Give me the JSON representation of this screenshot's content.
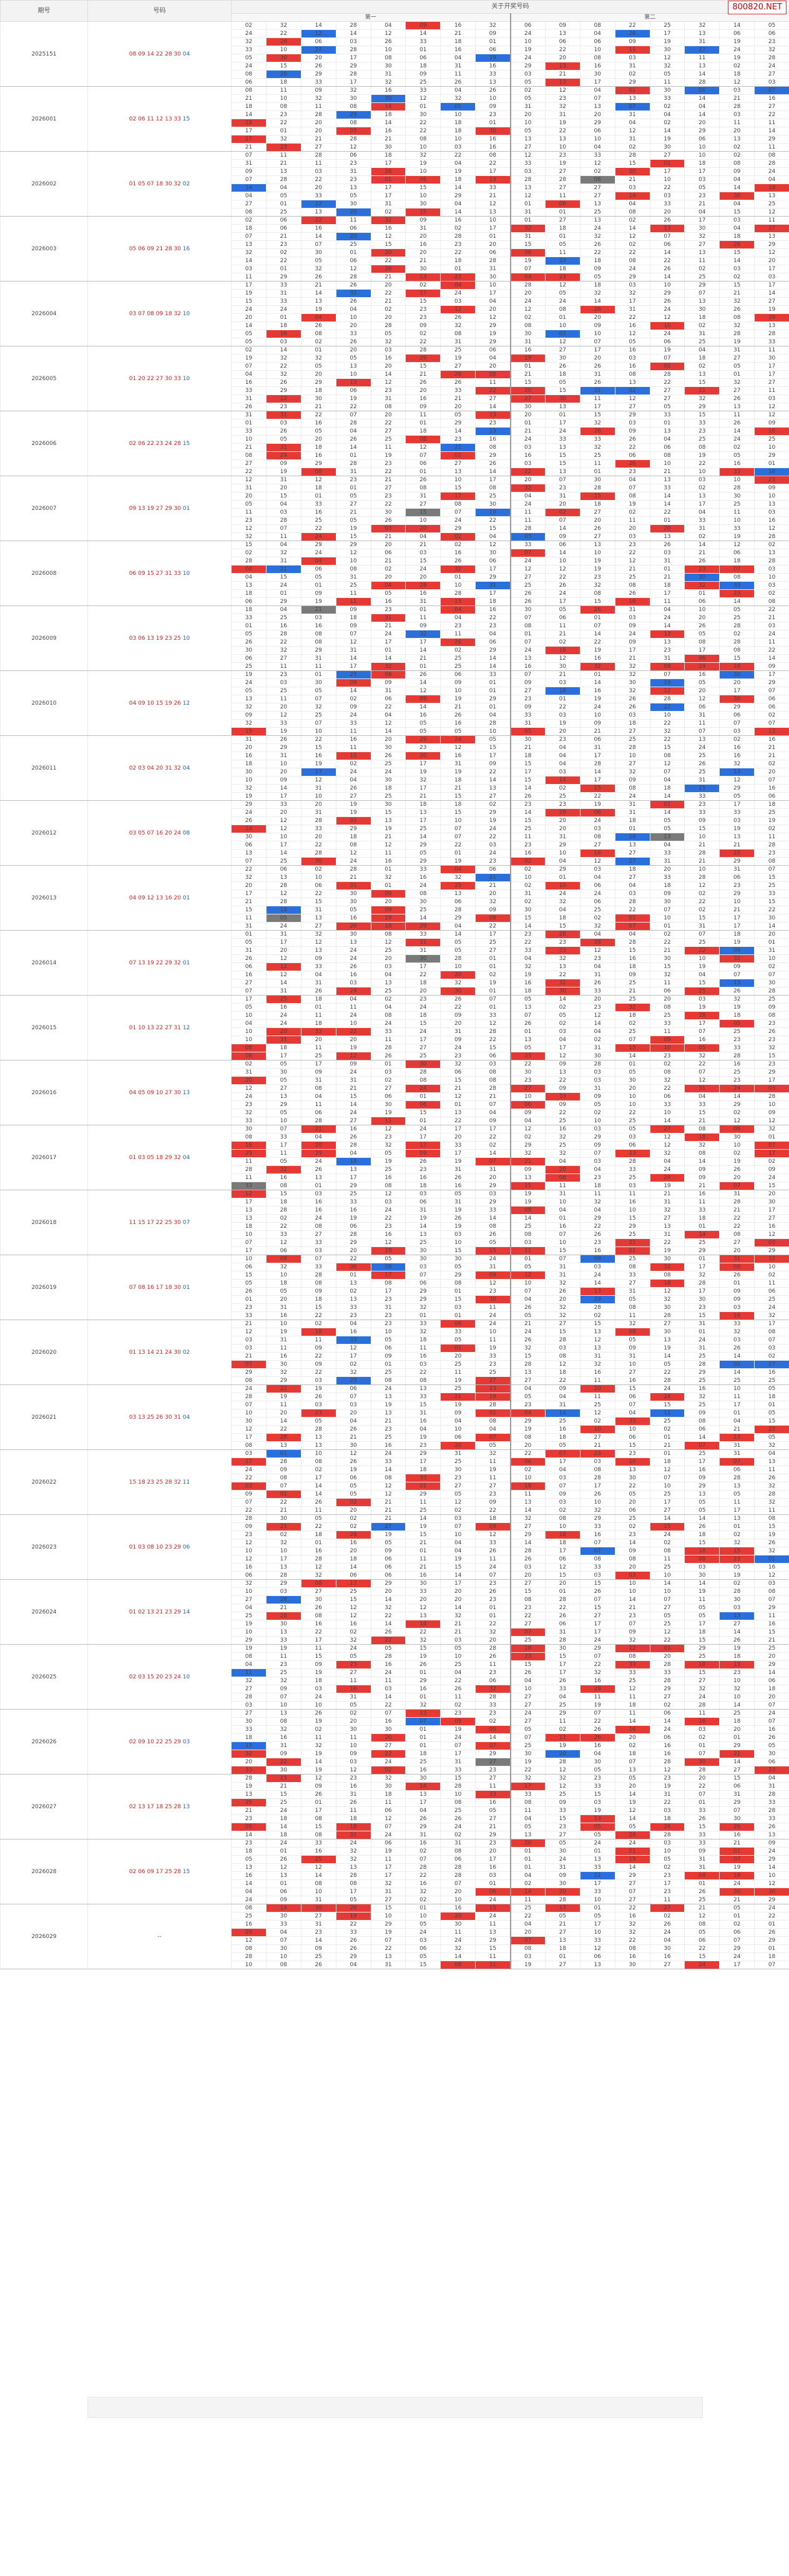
{
  "header": {
    "issue_col": "期号",
    "numbers_col": "号码",
    "predict_title": "关于开奖号码",
    "group1": "第一",
    "group2": "第二",
    "brand": "800820.NET"
  },
  "grid_cols": 16,
  "colors": {
    "red": "#e53935",
    "blue": "#2a6fdb",
    "grey": "#7a7a7a",
    "number_red": "#d42020",
    "number_blue": "#1e5fd8"
  },
  "blocks": [
    {
      "issue": "2025151",
      "reds": [
        "08",
        "09",
        "14",
        "22",
        "28",
        "30"
      ],
      "blue": "04"
    },
    {
      "issue": "2026001",
      "reds": [
        "02",
        "06",
        "11",
        "12",
        "13",
        "33"
      ],
      "blue": "15"
    },
    {
      "issue": "2026002",
      "reds": [
        "01",
        "05",
        "07",
        "18",
        "30",
        "32"
      ],
      "blue": "02"
    },
    {
      "issue": "2026003",
      "reds": [
        "05",
        "06",
        "09",
        "21",
        "28",
        "30"
      ],
      "blue": "16"
    },
    {
      "issue": "2026004",
      "reds": [
        "03",
        "07",
        "08",
        "09",
        "18",
        "32"
      ],
      "blue": "10"
    },
    {
      "issue": "2026005",
      "reds": [
        "01",
        "20",
        "22",
        "27",
        "30",
        "33"
      ],
      "blue": "10"
    },
    {
      "issue": "2026006",
      "reds": [
        "02",
        "06",
        "22",
        "23",
        "24",
        "28"
      ],
      "blue": "15"
    },
    {
      "issue": "2026007",
      "reds": [
        "09",
        "13",
        "19",
        "27",
        "29",
        "30"
      ],
      "blue": "01"
    },
    {
      "issue": "2026008",
      "reds": [
        "06",
        "09",
        "15",
        "27",
        "31",
        "33"
      ],
      "blue": "10"
    },
    {
      "issue": "2026009",
      "reds": [
        "03",
        "06",
        "13",
        "19",
        "23",
        "25"
      ],
      "blue": "10"
    },
    {
      "issue": "2026010",
      "reds": [
        "04",
        "09",
        "10",
        "15",
        "19",
        "26"
      ],
      "blue": "12"
    },
    {
      "issue": "2026011",
      "reds": [
        "02",
        "03",
        "04",
        "20",
        "31",
        "32"
      ],
      "blue": "04"
    },
    {
      "issue": "2026012",
      "reds": [
        "03",
        "05",
        "07",
        "16",
        "20",
        "24"
      ],
      "blue": "08"
    },
    {
      "issue": "2026013",
      "reds": [
        "04",
        "09",
        "12",
        "13",
        "16",
        "20"
      ],
      "blue": "01"
    },
    {
      "issue": "2026014",
      "reds": [
        "07",
        "13",
        "19",
        "22",
        "29",
        "32"
      ],
      "blue": "01"
    },
    {
      "issue": "2026015",
      "reds": [
        "01",
        "10",
        "13",
        "22",
        "27",
        "31"
      ],
      "blue": "12"
    },
    {
      "issue": "2026016",
      "reds": [
        "04",
        "05",
        "09",
        "10",
        "27",
        "30"
      ],
      "blue": "13"
    },
    {
      "issue": "2026017",
      "reds": [
        "01",
        "03",
        "05",
        "18",
        "29",
        "32"
      ],
      "blue": "04"
    },
    {
      "issue": "2026018",
      "reds": [
        "11",
        "15",
        "17",
        "22",
        "25",
        "30"
      ],
      "blue": "07"
    },
    {
      "issue": "2026019",
      "reds": [
        "07",
        "08",
        "16",
        "17",
        "18",
        "30"
      ],
      "blue": "01"
    },
    {
      "issue": "2026020",
      "reds": [
        "01",
        "13",
        "14",
        "21",
        "24",
        "30"
      ],
      "blue": "02"
    },
    {
      "issue": "2026021",
      "reds": [
        "03",
        "13",
        "25",
        "26",
        "30",
        "31"
      ],
      "blue": "04"
    },
    {
      "issue": "2026022",
      "reds": [
        "15",
        "18",
        "23",
        "25",
        "28",
        "32"
      ],
      "blue": "11"
    },
    {
      "issue": "2026023",
      "reds": [
        "01",
        "03",
        "08",
        "10",
        "23",
        "29"
      ],
      "blue": "06"
    },
    {
      "issue": "2026024",
      "reds": [
        "01",
        "02",
        "13",
        "21",
        "23",
        "29"
      ],
      "blue": "14"
    },
    {
      "issue": "2026025",
      "reds": [
        "02",
        "03",
        "15",
        "20",
        "23",
        "24"
      ],
      "blue": "10"
    },
    {
      "issue": "2026026",
      "reds": [
        "02",
        "09",
        "10",
        "22",
        "25",
        "29"
      ],
      "blue": "03"
    },
    {
      "issue": "2026027",
      "reds": [
        "02",
        "13",
        "17",
        "18",
        "25",
        "28"
      ],
      "blue": "13"
    },
    {
      "issue": "2026028",
      "reds": [
        "02",
        "06",
        "09",
        "17",
        "25",
        "28"
      ],
      "blue": "15"
    },
    {
      "issue": "2026029",
      "reds": [],
      "blue": "",
      "placeholder": "--"
    }
  ]
}
